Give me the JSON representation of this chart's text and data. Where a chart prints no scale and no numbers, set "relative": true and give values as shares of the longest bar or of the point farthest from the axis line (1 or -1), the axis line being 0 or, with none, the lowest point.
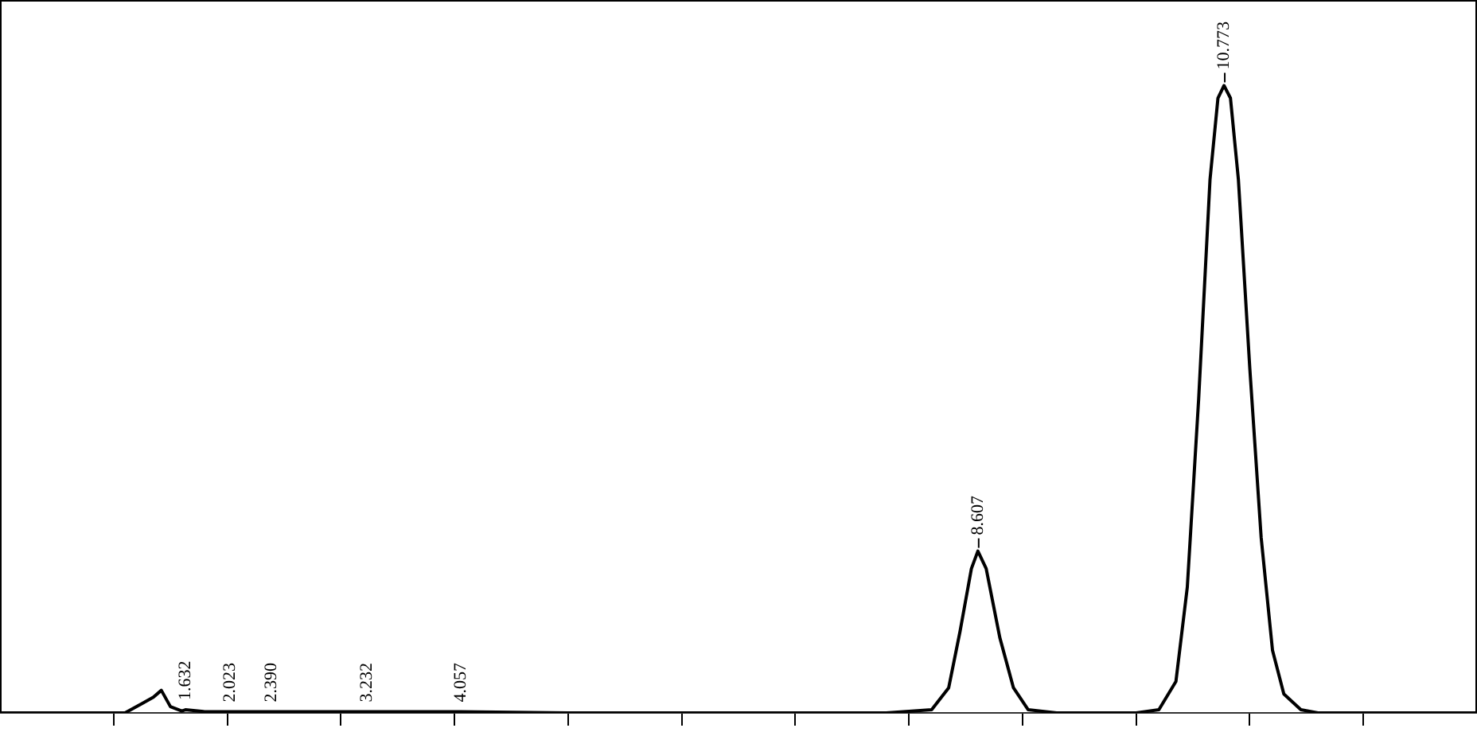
{
  "chart_data": {
    "type": "line",
    "relative": true,
    "color": "#000000",
    "marker": "none",
    "legend": false,
    "x": [
      0,
      1.1,
      1.25,
      1.35,
      1.42,
      1.5,
      1.6,
      1.632,
      1.8,
      2.023,
      2.39,
      3.232,
      4.057,
      5,
      7.8,
      8.2,
      8.35,
      8.45,
      8.55,
      8.607,
      8.68,
      8.8,
      8.92,
      9.05,
      9.3,
      10,
      10.2,
      10.35,
      10.45,
      10.55,
      10.65,
      10.72,
      10.773,
      10.83,
      10.9,
      11,
      11.1,
      11.2,
      11.3,
      11.45,
      11.6,
      13
    ],
    "values": [
      0,
      0,
      0.015,
      0.025,
      0.036,
      0.01,
      0.003,
      0.005,
      0.002,
      0.002,
      0.002,
      0.002,
      0.002,
      0,
      0,
      0.005,
      0.04,
      0.13,
      0.23,
      0.258,
      0.23,
      0.12,
      0.04,
      0.005,
      0,
      0,
      0.005,
      0.05,
      0.2,
      0.5,
      0.85,
      0.98,
      1,
      0.98,
      0.85,
      0.55,
      0.28,
      0.1,
      0.03,
      0.005,
      0,
      0
    ],
    "xlim": [
      0,
      13
    ],
    "xticks": [
      {
        "value": 1,
        "label": null
      },
      {
        "value": 1.632,
        "label": "1.632"
      },
      {
        "value": 2,
        "label": null
      },
      {
        "value": 2.023,
        "label": "2.023"
      },
      {
        "value": 2.39,
        "label": "2.390"
      },
      {
        "value": 3,
        "label": null
      },
      {
        "value": 3.232,
        "label": "3.232"
      },
      {
        "value": 4,
        "label": null
      },
      {
        "value": 4.057,
        "label": "4.057"
      },
      {
        "value": 5,
        "label": null
      },
      {
        "value": 6,
        "label": null
      },
      {
        "value": 7,
        "label": null
      },
      {
        "value": 8,
        "label": null
      },
      {
        "value": 9,
        "label": null
      },
      {
        "value": 10,
        "label": null
      },
      {
        "value": 11,
        "label": null
      },
      {
        "value": 12,
        "label": null
      }
    ],
    "annotations": [
      {
        "text": "8.607",
        "x": 8.607,
        "y": 0.258
      },
      {
        "text": "10.773",
        "x": 10.773,
        "y": 1
      }
    ]
  }
}
